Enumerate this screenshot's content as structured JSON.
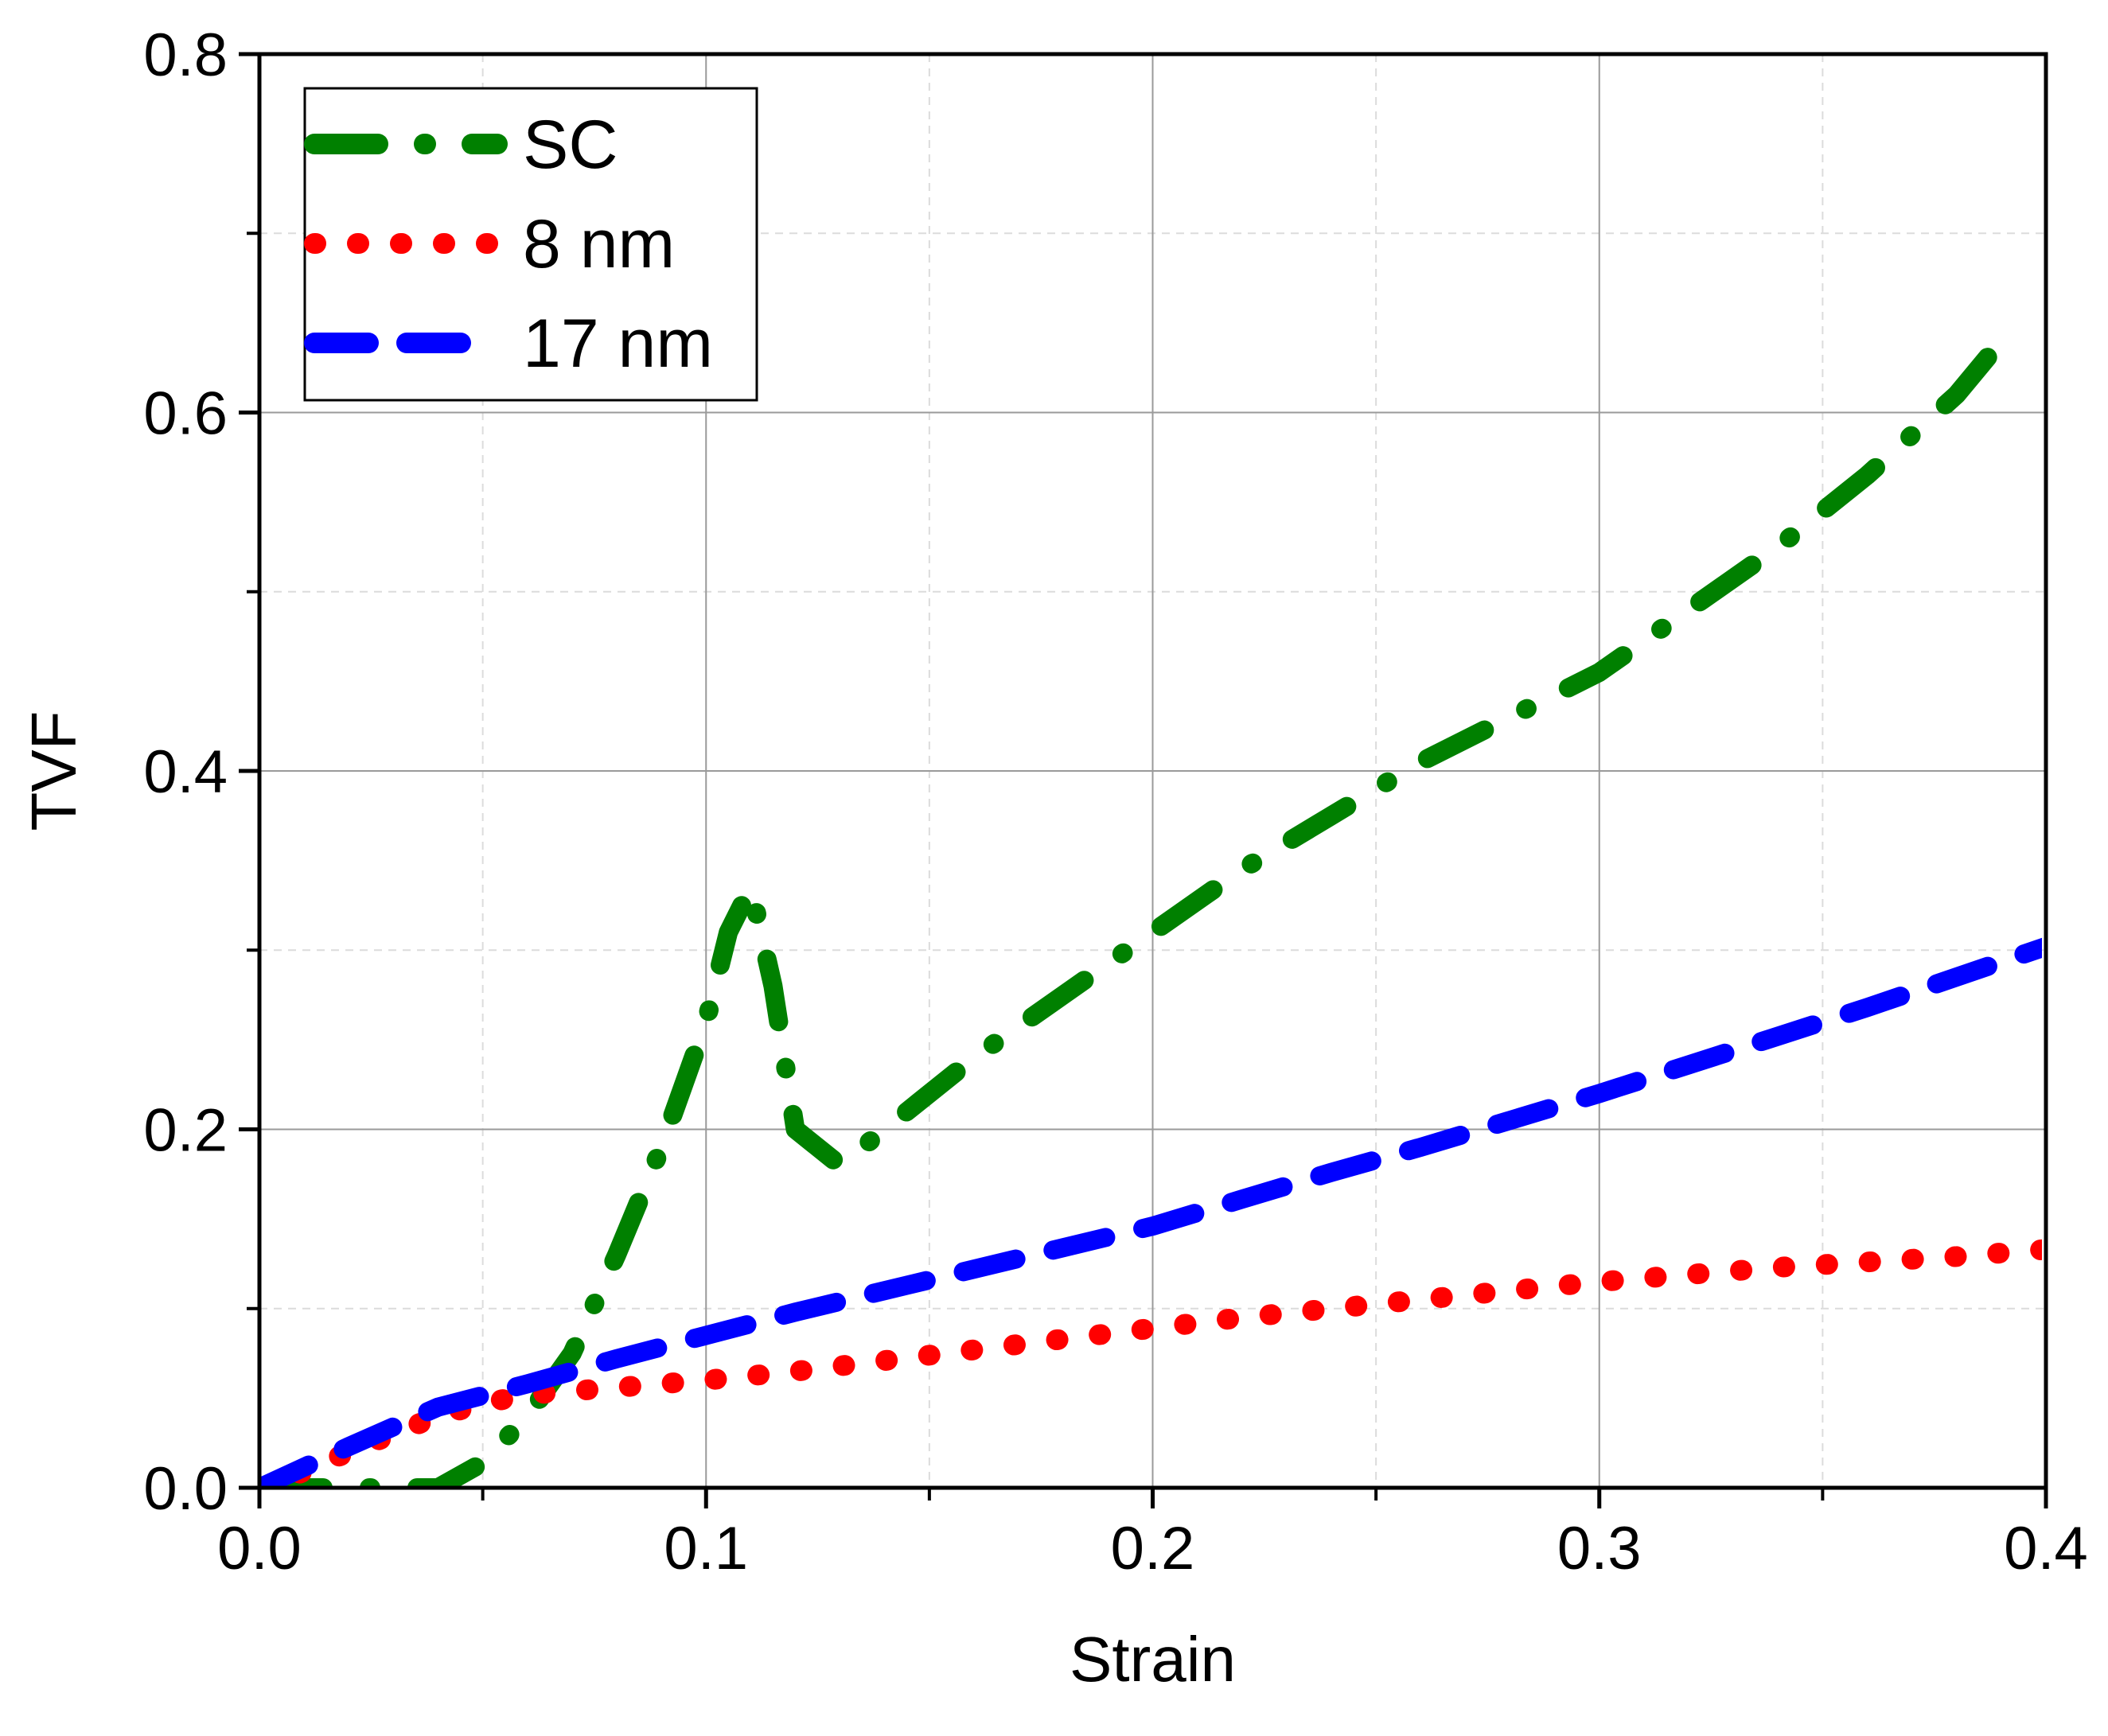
{
  "chart_data": {
    "type": "line",
    "title": "",
    "xlabel": "Strain",
    "ylabel": "TVF",
    "xlim": [
      0,
      0.4
    ],
    "ylim": [
      0,
      0.8
    ],
    "xticks": [
      0.0,
      0.1,
      0.2,
      0.3,
      0.4
    ],
    "yticks": [
      0.0,
      0.2,
      0.4,
      0.6,
      0.8
    ],
    "xtick_labels": [
      "0.0",
      "0.1",
      "0.2",
      "0.3",
      "0.4"
    ],
    "ytick_labels": [
      "0.0",
      "0.2",
      "0.4",
      "0.6",
      "0.8"
    ],
    "x_minor_ticks": [
      0.05,
      0.15,
      0.25,
      0.35
    ],
    "y_minor_ticks": [
      0.1,
      0.3,
      0.5,
      0.7
    ],
    "grid": true,
    "legend_position": "top-left",
    "series": [
      {
        "name": "SC",
        "color": "#008000",
        "style": "dash-dot",
        "x": [
          0.0,
          0.01,
          0.02,
          0.03,
          0.04,
          0.05,
          0.06,
          0.07,
          0.08,
          0.09,
          0.1,
          0.105,
          0.11,
          0.115,
          0.12,
          0.13,
          0.14,
          0.16,
          0.18,
          0.2,
          0.22,
          0.24,
          0.26,
          0.28,
          0.3,
          0.32,
          0.34,
          0.36,
          0.38,
          0.39
        ],
        "values": [
          0.0,
          0.0,
          0.0,
          0.0,
          0.0,
          0.014,
          0.04,
          0.075,
          0.13,
          0.19,
          0.26,
          0.31,
          0.335,
          0.28,
          0.2,
          0.18,
          0.2,
          0.24,
          0.275,
          0.31,
          0.345,
          0.375,
          0.405,
          0.43,
          0.455,
          0.49,
          0.525,
          0.565,
          0.61,
          0.64
        ]
      },
      {
        "name": "8 nm",
        "color": "#ff0000",
        "style": "dotted",
        "x": [
          0.0,
          0.01,
          0.02,
          0.03,
          0.04,
          0.05,
          0.06,
          0.08,
          0.1,
          0.12,
          0.14,
          0.16,
          0.18,
          0.2,
          0.22,
          0.24,
          0.26,
          0.28,
          0.3,
          0.32,
          0.34,
          0.36,
          0.38,
          0.4
        ],
        "values": [
          0.0,
          0.009,
          0.02,
          0.03,
          0.04,
          0.047,
          0.052,
          0.056,
          0.06,
          0.065,
          0.071,
          0.077,
          0.083,
          0.089,
          0.095,
          0.1,
          0.105,
          0.11,
          0.115,
          0.119,
          0.123,
          0.126,
          0.129,
          0.133
        ]
      },
      {
        "name": "17 nm",
        "color": "#0000ff",
        "style": "dashed",
        "x": [
          0.0,
          0.02,
          0.04,
          0.06,
          0.08,
          0.1,
          0.12,
          0.14,
          0.16,
          0.18,
          0.2,
          0.22,
          0.24,
          0.26,
          0.28,
          0.3,
          0.32,
          0.34,
          0.36,
          0.38,
          0.4
        ],
        "values": [
          0.0,
          0.023,
          0.045,
          0.058,
          0.072,
          0.085,
          0.098,
          0.11,
          0.122,
          0.134,
          0.146,
          0.161,
          0.176,
          0.19,
          0.205,
          0.22,
          0.236,
          0.252,
          0.268,
          0.285,
          0.302
        ]
      }
    ]
  }
}
